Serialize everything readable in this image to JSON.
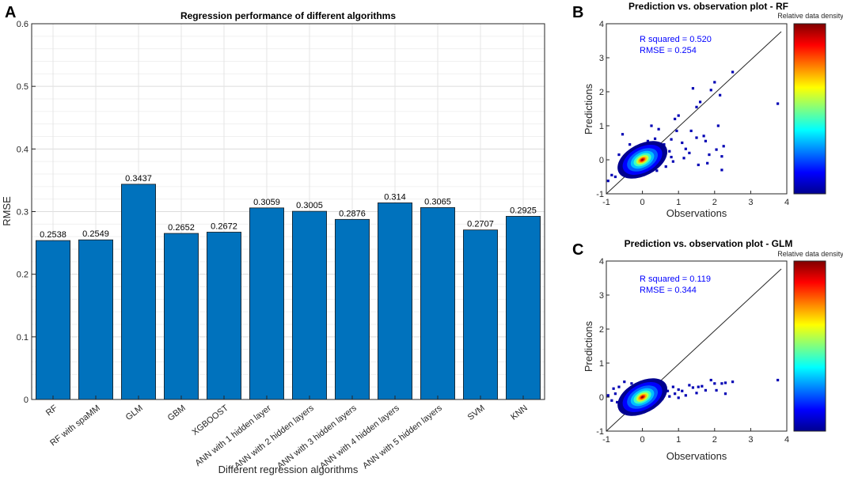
{
  "chart_data": [
    {
      "type": "bar",
      "panel_label": "A",
      "title": "Regression performance of different algorithms",
      "xlabel": "Different regression algorithms",
      "ylabel": "RMSE",
      "ylim": [
        0,
        0.6
      ],
      "yticks": [
        "0",
        "0.1",
        "0.2",
        "0.3",
        "0.4",
        "0.5",
        "0.6"
      ],
      "grid": true,
      "bar_color": "#0072bd",
      "categories": [
        "RF",
        "RF with spaMM",
        "GLM",
        "GBM",
        "XGBOOST",
        "ANN with 1 hidden layer",
        "ANN with 2 hidden layers",
        "ANN with 3 hidden layers",
        "ANN with 4 hidden layers",
        "ANN with 5 hidden layers",
        "SVM",
        "KNN"
      ],
      "values": [
        0.2538,
        0.2549,
        0.3437,
        0.2652,
        0.2672,
        0.3059,
        0.3005,
        0.2876,
        0.314,
        0.3065,
        0.2707,
        0.2925
      ],
      "value_labels": [
        "0.2538",
        "0.2549",
        "0.3437",
        "0.2652",
        "0.2672",
        "0.3059",
        "0.3005",
        "0.2876",
        "0.314",
        "0.3065",
        "0.2707",
        "0.2925"
      ]
    },
    {
      "type": "scatter",
      "panel_label": "B",
      "title": "Prediction vs. observation plot - RF",
      "xlabel": "Observations",
      "ylabel": "Predictions",
      "xlim": [
        -1,
        4
      ],
      "ylim": [
        -1,
        4
      ],
      "xticks": [
        "-1",
        "0",
        "1",
        "2",
        "3",
        "4"
      ],
      "yticks": [
        "-1",
        "0",
        "1",
        "2",
        "3",
        "4"
      ],
      "annotation_r2": "R squared = 0.520",
      "annotation_rmse": "RMSE = 0.254",
      "colorbar_label": "Relative data density",
      "reference_line": "1:1",
      "points": [
        [
          3.75,
          1.65
        ],
        [
          2.5,
          2.58
        ],
        [
          2.15,
          1.9
        ],
        [
          2.0,
          2.28
        ],
        [
          1.9,
          2.05
        ],
        [
          1.5,
          1.55
        ],
        [
          1.4,
          2.1
        ],
        [
          1.6,
          1.7
        ],
        [
          1.5,
          0.65
        ],
        [
          1.3,
          0.2
        ],
        [
          1.75,
          0.55
        ],
        [
          1.8,
          -0.1
        ],
        [
          1.85,
          0.15
        ],
        [
          2.2,
          0.1
        ],
        [
          2.25,
          0.4
        ],
        [
          2.1,
          1.0
        ],
        [
          2.2,
          -0.3
        ],
        [
          1.7,
          0.7
        ],
        [
          1.0,
          1.3
        ],
        [
          0.9,
          1.2
        ],
        [
          0.8,
          0.6
        ],
        [
          0.75,
          0.25
        ],
        [
          0.8,
          0.08
        ],
        [
          0.6,
          0.45
        ],
        [
          0.45,
          0.9
        ],
        [
          0.25,
          1.0
        ],
        [
          -0.55,
          0.75
        ],
        [
          -0.65,
          0.15
        ],
        [
          -0.75,
          -0.5
        ],
        [
          -0.85,
          -0.45
        ],
        [
          -0.95,
          -0.62
        ],
        [
          1.1,
          0.5
        ],
        [
          1.2,
          0.32
        ],
        [
          0.65,
          -0.2
        ],
        [
          1.55,
          -0.15
        ],
        [
          0.95,
          0.85
        ],
        [
          0.55,
          0.18
        ],
        [
          0.35,
          0.62
        ],
        [
          -0.35,
          0.45
        ],
        [
          1.35,
          0.85
        ],
        [
          2.05,
          0.3
        ],
        [
          0.85,
          -0.05
        ],
        [
          -0.5,
          -0.2
        ],
        [
          0.4,
          -0.32
        ],
        [
          0.15,
          0.55
        ],
        [
          1.15,
          0.05
        ]
      ],
      "cluster_center": [
        0.0,
        0.0
      ]
    },
    {
      "type": "scatter",
      "panel_label": "C",
      "title": "Prediction vs. observation plot - GLM",
      "xlabel": "Observations",
      "ylabel": "Predictions",
      "xlim": [
        -1,
        4
      ],
      "ylim": [
        -1,
        4
      ],
      "xticks": [
        "-1",
        "0",
        "1",
        "2",
        "3",
        "4"
      ],
      "yticks": [
        "-1",
        "0",
        "1",
        "2",
        "3",
        "4"
      ],
      "annotation_r2": "R squared = 0.119",
      "annotation_rmse": "RMSE = 0.344",
      "colorbar_label": "Relative data density",
      "reference_line": "1:1",
      "points": [
        [
          3.75,
          0.5
        ],
        [
          2.5,
          0.45
        ],
        [
          2.3,
          0.42
        ],
        [
          2.2,
          0.4
        ],
        [
          2.0,
          0.4
        ],
        [
          1.9,
          0.5
        ],
        [
          1.75,
          0.2
        ],
        [
          1.65,
          0.32
        ],
        [
          1.55,
          0.3
        ],
        [
          1.5,
          0.12
        ],
        [
          1.4,
          0.28
        ],
        [
          1.3,
          0.35
        ],
        [
          1.2,
          0.05
        ],
        [
          1.1,
          0.18
        ],
        [
          1.0,
          0.22
        ],
        [
          0.9,
          0.1
        ],
        [
          0.85,
          0.3
        ],
        [
          0.75,
          0.02
        ],
        [
          0.7,
          0.18
        ],
        [
          0.6,
          0.25
        ],
        [
          2.05,
          0.2
        ],
        [
          2.3,
          0.1
        ],
        [
          -0.5,
          0.45
        ],
        [
          -0.65,
          0.3
        ],
        [
          -0.75,
          0.1
        ],
        [
          -0.85,
          -0.1
        ],
        [
          -0.8,
          0.25
        ],
        [
          -0.55,
          -0.05
        ],
        [
          -0.95,
          0.05
        ],
        [
          -0.7,
          -0.15
        ],
        [
          0.1,
          -0.35
        ],
        [
          0.25,
          0.42
        ],
        [
          -0.3,
          0.4
        ],
        [
          0.55,
          -0.05
        ],
        [
          1.0,
          -0.02
        ]
      ],
      "cluster_center": [
        0.0,
        0.0
      ]
    }
  ]
}
